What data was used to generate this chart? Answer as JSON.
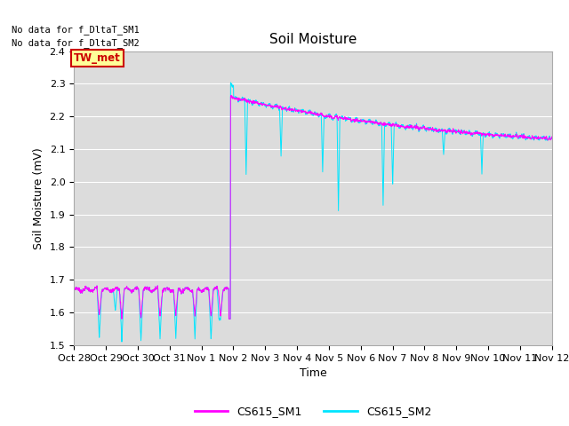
{
  "title": "Soil Moisture",
  "ylabel": "Soil Moisture (mV)",
  "xlabel": "Time",
  "ylim": [
    1.5,
    2.4
  ],
  "yticks": [
    1.5,
    1.6,
    1.7,
    1.8,
    1.9,
    2.0,
    2.1,
    2.2,
    2.3,
    2.4
  ],
  "plot_bg_color": "#dcdcdc",
  "line1_color": "#ff00ff",
  "line2_color": "#00e5ff",
  "line1_label": "CS615_SM1",
  "line2_label": "CS615_SM2",
  "legend_box_color": "#ffff99",
  "legend_box_edge": "#cc0000",
  "legend_text": "TW_met",
  "no_data_text1": "No data for f_DltaT_SM1",
  "no_data_text2": "No data for f_DltaT_SM2",
  "xtick_labels": [
    "Oct 28",
    "Oct 29",
    "Oct 30",
    "Oct 31",
    "Nov 1",
    "Nov 2",
    "Nov 3",
    "Nov 4",
    "Nov 5",
    "Nov 6",
    "Nov 7",
    "Nov 8",
    "Nov 9",
    "Nov 10",
    "Nov 11",
    "Nov 12"
  ],
  "grid_color": "#ffffff",
  "title_fontsize": 11,
  "label_fontsize": 9,
  "tick_fontsize": 8
}
